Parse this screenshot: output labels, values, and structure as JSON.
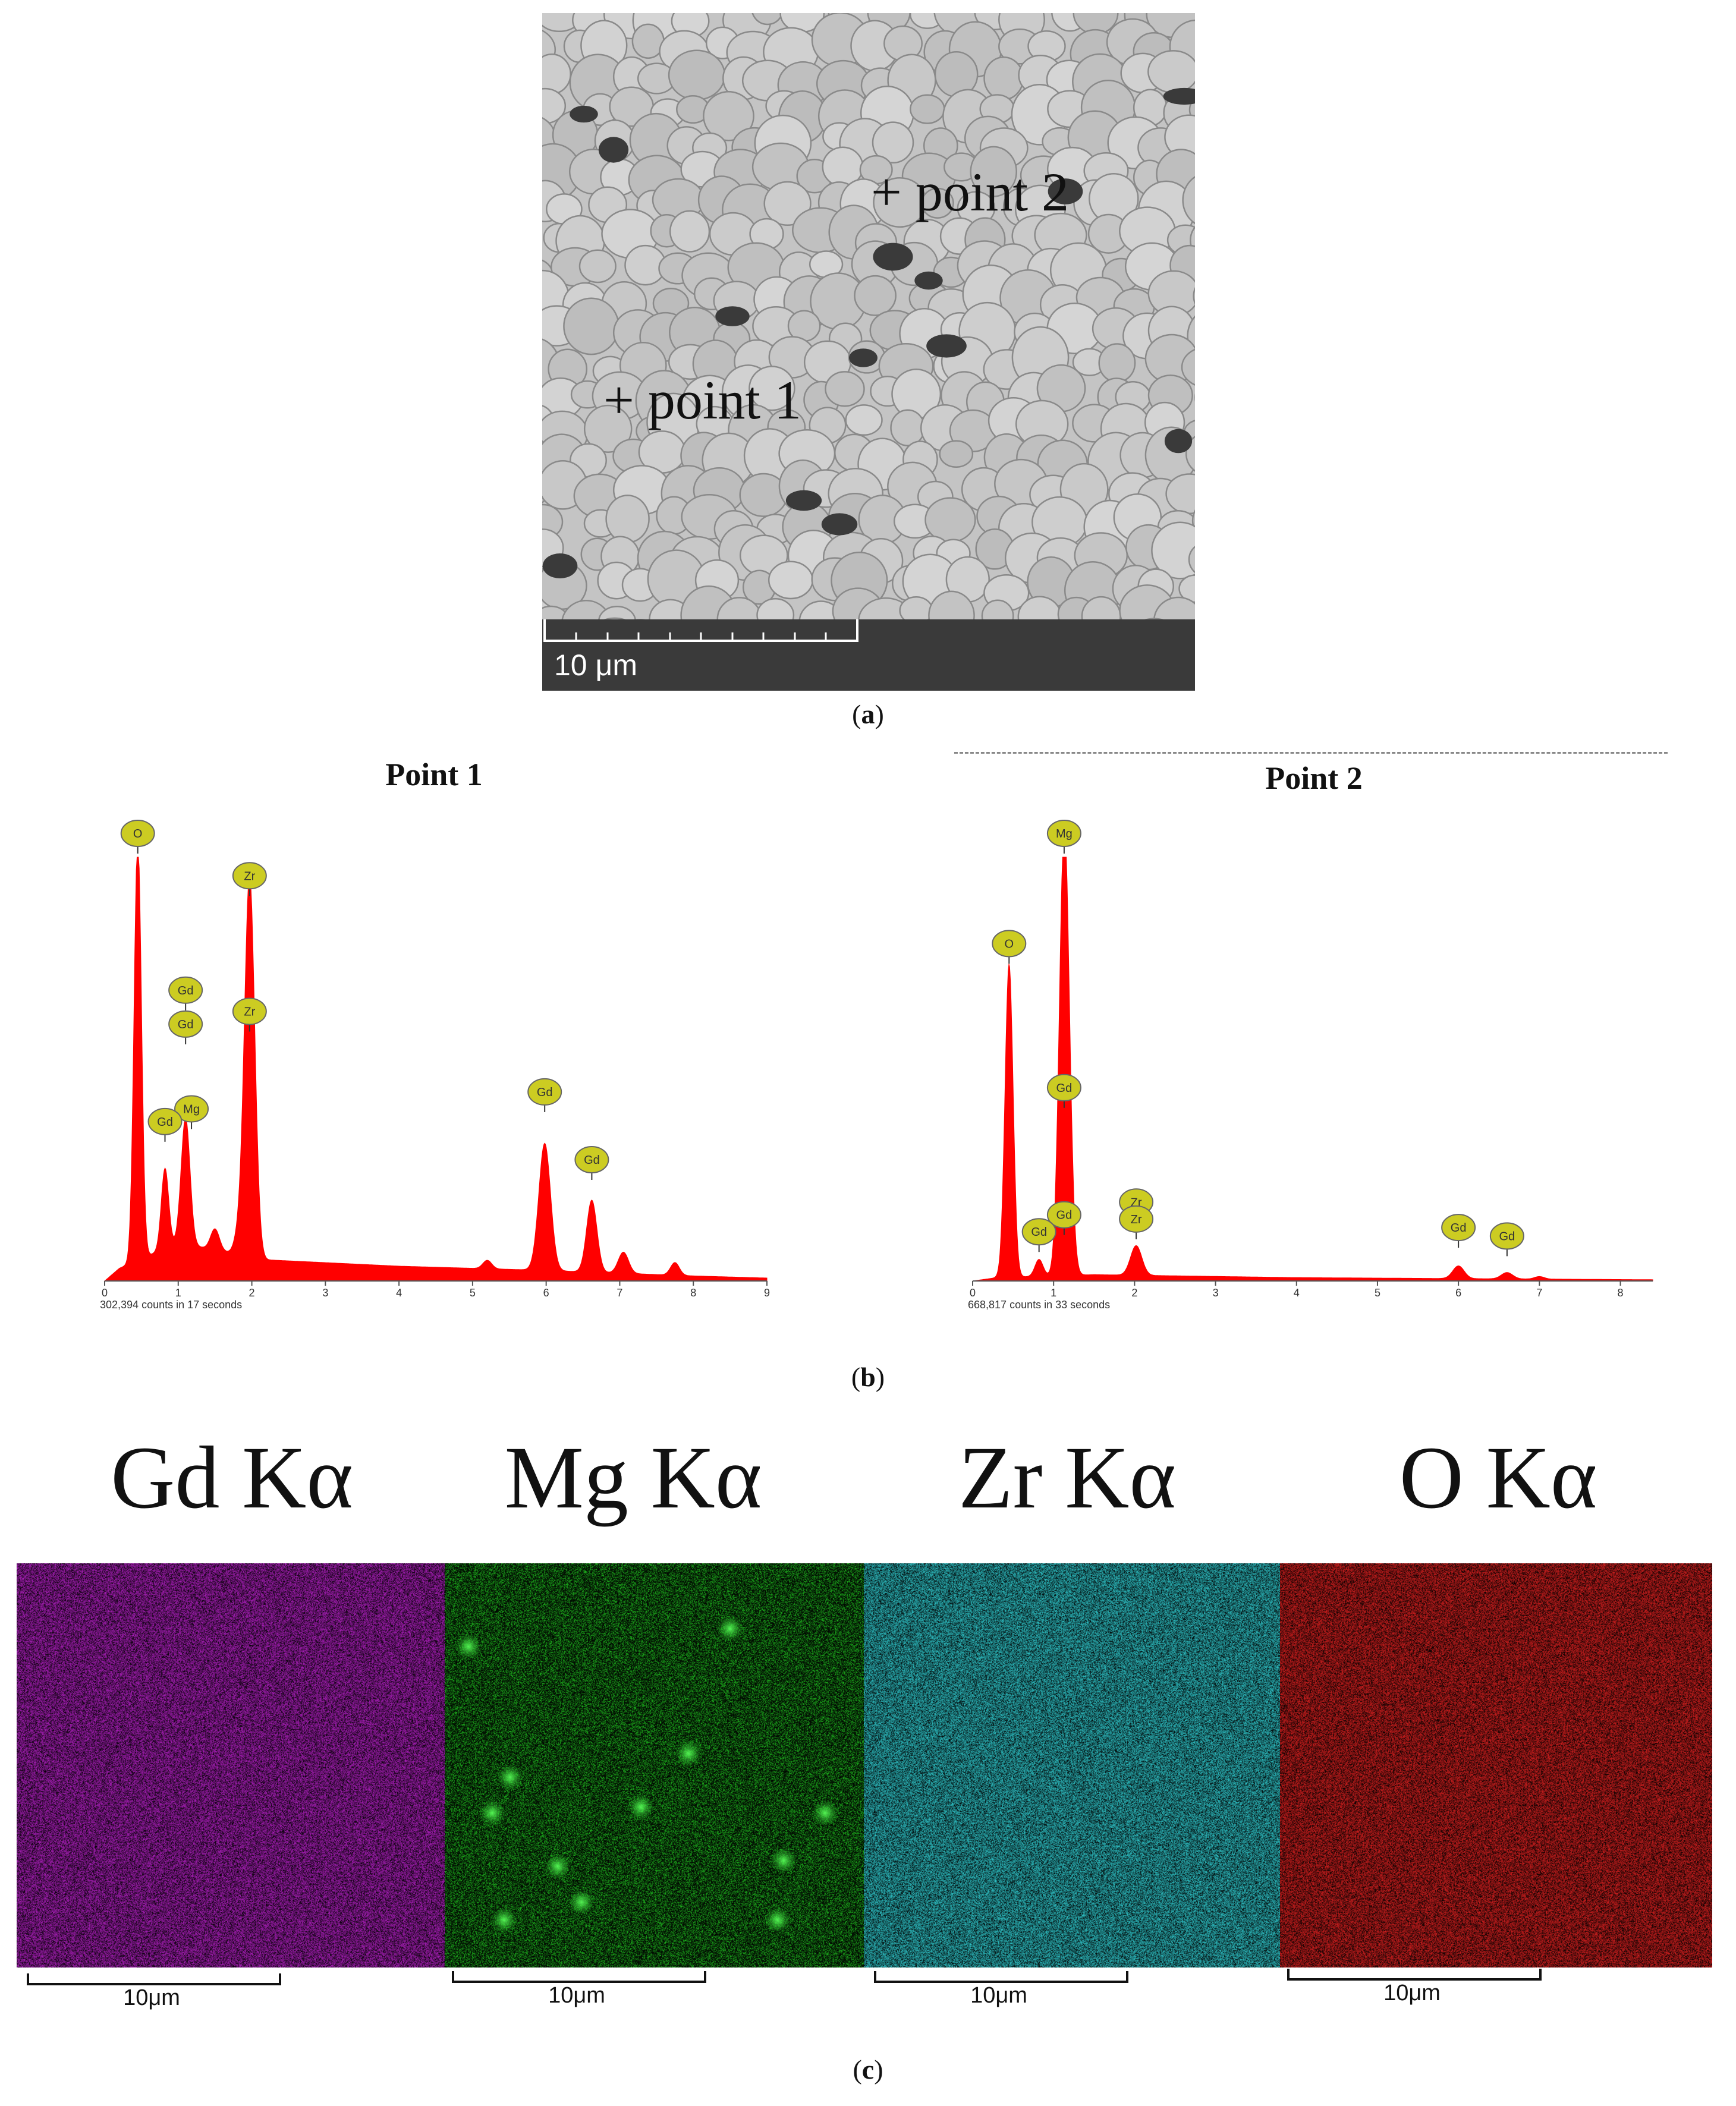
{
  "panel_a": {
    "caption_letter": "a",
    "points": [
      "+ point 2",
      "+ point 1"
    ],
    "scale_label": "10 μm"
  },
  "panel_b": {
    "caption_letter": "b"
  },
  "panel_c": {
    "caption_letter": "c",
    "maps": [
      {
        "label": "Gd Kα",
        "scale": "10μm",
        "color": "#b020c0"
      },
      {
        "label": "Mg Kα",
        "scale": "10μm",
        "color": "#20c020"
      },
      {
        "label": "Zr Kα",
        "scale": "10μm",
        "color": "#30c8cc"
      },
      {
        "label": "O Kα",
        "scale": "10μm",
        "color": "#d82020"
      }
    ]
  },
  "chart_data": [
    {
      "type": "line",
      "title": "Point 1",
      "xlabel": "",
      "ylabel": "",
      "xlim": [
        0,
        9
      ],
      "ylim": [
        0,
        100
      ],
      "x_ticks": [
        "0",
        "1",
        "2",
        "3",
        "4",
        "5",
        "6",
        "7",
        "8",
        "9"
      ],
      "footer": "302,394 counts in 17 seconds",
      "fill_color": "#ff0000",
      "peaks": [
        {
          "x": 0.45,
          "height": 100,
          "width": 0.05
        },
        {
          "x": 0.82,
          "height": 19,
          "width": 0.05
        },
        {
          "x": 1.1,
          "height": 30,
          "width": 0.06
        },
        {
          "x": 1.5,
          "height": 5,
          "width": 0.06
        },
        {
          "x": 1.82,
          "height": 4,
          "width": 0.06
        },
        {
          "x": 1.97,
          "height": 90,
          "width": 0.07
        },
        {
          "x": 5.2,
          "height": 2,
          "width": 0.06
        },
        {
          "x": 5.98,
          "height": 30,
          "width": 0.08
        },
        {
          "x": 6.62,
          "height": 17,
          "width": 0.07
        },
        {
          "x": 7.05,
          "height": 5,
          "width": 0.07
        },
        {
          "x": 7.75,
          "height": 3,
          "width": 0.06
        }
      ],
      "background": [
        {
          "x": 0,
          "y": 0
        },
        {
          "x": 0.2,
          "y": 3
        },
        {
          "x": 1.0,
          "y": 9
        },
        {
          "x": 2.2,
          "y": 5
        },
        {
          "x": 4.0,
          "y": 3.5
        },
        {
          "x": 6.0,
          "y": 2.5
        },
        {
          "x": 8.0,
          "y": 1.2
        },
        {
          "x": 9.0,
          "y": 0.7
        }
      ],
      "labels": [
        {
          "text": "O",
          "x": 0.45,
          "y": 100
        },
        {
          "text": "Zr",
          "x": 1.97,
          "y": 90
        },
        {
          "text": "Gd",
          "x": 1.1,
          "y": 63
        },
        {
          "text": "Gd",
          "x": 1.1,
          "y": 55
        },
        {
          "text": "Zr",
          "x": 1.97,
          "y": 58
        },
        {
          "text": "Mg",
          "x": 1.18,
          "y": 35
        },
        {
          "text": "Gd",
          "x": 0.82,
          "y": 32
        },
        {
          "text": "Gd",
          "x": 5.98,
          "y": 39
        },
        {
          "text": "Gd",
          "x": 6.62,
          "y": 23
        }
      ]
    },
    {
      "type": "line",
      "title": "Point 2",
      "xlabel": "",
      "ylabel": "",
      "xlim": [
        0,
        8.4
      ],
      "ylim": [
        0,
        100
      ],
      "x_ticks": [
        "0",
        "1",
        "2",
        "3",
        "4",
        "5",
        "6",
        "7",
        "8"
      ],
      "footer": "668,817 counts in 33 seconds",
      "fill_color": "#ff0000",
      "peaks": [
        {
          "x": 0.45,
          "height": 74,
          "width": 0.05
        },
        {
          "x": 0.82,
          "height": 4,
          "width": 0.05
        },
        {
          "x": 1.13,
          "height": 100,
          "width": 0.06
        },
        {
          "x": 1.18,
          "height": 10,
          "width": 0.06
        },
        {
          "x": 2.02,
          "height": 7,
          "width": 0.07
        },
        {
          "x": 6.0,
          "height": 3,
          "width": 0.07
        },
        {
          "x": 6.6,
          "height": 1.5,
          "width": 0.07
        },
        {
          "x": 7.0,
          "height": 0.6,
          "width": 0.06
        }
      ],
      "background": [
        {
          "x": 0,
          "y": 0
        },
        {
          "x": 0.3,
          "y": 0.8
        },
        {
          "x": 1.5,
          "y": 1.5
        },
        {
          "x": 4.0,
          "y": 0.8
        },
        {
          "x": 8.4,
          "y": 0.3
        }
      ],
      "labels": [
        {
          "text": "Mg",
          "x": 1.13,
          "y": 100
        },
        {
          "text": "O",
          "x": 0.45,
          "y": 74
        },
        {
          "text": "Gd",
          "x": 1.13,
          "y": 40
        },
        {
          "text": "Zr",
          "x": 2.02,
          "y": 13
        },
        {
          "text": "Zr",
          "x": 2.02,
          "y": 9
        },
        {
          "text": "Gd",
          "x": 1.13,
          "y": 10
        },
        {
          "text": "Gd",
          "x": 0.82,
          "y": 6
        },
        {
          "text": "Gd",
          "x": 6.0,
          "y": 7
        },
        {
          "text": "Gd",
          "x": 6.6,
          "y": 5
        }
      ]
    }
  ]
}
